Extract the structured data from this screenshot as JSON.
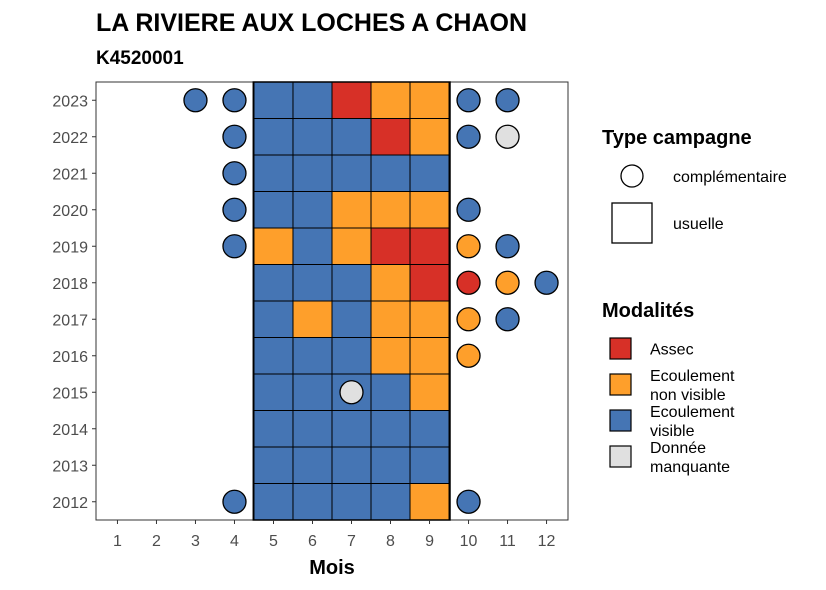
{
  "chart_data": {
    "type": "heatmap",
    "title": "LA RIVIERE AUX LOCHES A CHAON",
    "subtitle": "K4520001",
    "xlabel": "Mois",
    "ylabel": "",
    "x_ticks": [
      1,
      2,
      3,
      4,
      5,
      6,
      7,
      8,
      9,
      10,
      11,
      12
    ],
    "y_ticks": [
      2012,
      2013,
      2014,
      2015,
      2016,
      2017,
      2018,
      2019,
      2020,
      2021,
      2022,
      2023
    ],
    "usual_months": [
      5,
      6,
      7,
      8,
      9
    ],
    "colors": {
      "Assec": "#d73027",
      "Ecoulement non visible": "#fe9f2b",
      "Ecoulement visible": "#4575b4",
      "Donnee manquante": "#e0e0e0"
    },
    "legend_type": {
      "title": "Type campagne",
      "items": [
        {
          "key": "complementaire",
          "label": "complémentaire"
        },
        {
          "key": "usuelle",
          "label": "usuelle"
        }
      ]
    },
    "legend_modalites": {
      "title": "Modalités",
      "items": [
        {
          "key": "Assec",
          "lines": [
            "Assec"
          ]
        },
        {
          "key": "Ecoulement non visible",
          "lines": [
            "Ecoulement",
            "non visible"
          ]
        },
        {
          "key": "Ecoulement visible",
          "lines": [
            "Ecoulement",
            "visible"
          ]
        },
        {
          "key": "Donnee manquante",
          "lines": [
            "Donnée",
            "manquante"
          ]
        }
      ]
    },
    "usuelle": [
      {
        "year": 2023,
        "values": [
          "Ecoulement visible",
          "Ecoulement visible",
          "Assec",
          "Ecoulement non visible",
          "Ecoulement non visible"
        ]
      },
      {
        "year": 2022,
        "values": [
          "Ecoulement visible",
          "Ecoulement visible",
          "Ecoulement visible",
          "Assec",
          "Ecoulement non visible"
        ]
      },
      {
        "year": 2021,
        "values": [
          "Ecoulement visible",
          "Ecoulement visible",
          "Ecoulement visible",
          "Ecoulement visible",
          "Ecoulement visible"
        ]
      },
      {
        "year": 2020,
        "values": [
          "Ecoulement visible",
          "Ecoulement visible",
          "Ecoulement non visible",
          "Ecoulement non visible",
          "Ecoulement non visible"
        ]
      },
      {
        "year": 2019,
        "values": [
          "Ecoulement non visible",
          "Ecoulement visible",
          "Ecoulement non visible",
          "Assec",
          "Assec"
        ]
      },
      {
        "year": 2018,
        "values": [
          "Ecoulement visible",
          "Ecoulement visible",
          "Ecoulement visible",
          "Ecoulement non visible",
          "Assec"
        ]
      },
      {
        "year": 2017,
        "values": [
          "Ecoulement visible",
          "Ecoulement non visible",
          "Ecoulement visible",
          "Ecoulement non visible",
          "Ecoulement non visible"
        ]
      },
      {
        "year": 2016,
        "values": [
          "Ecoulement visible",
          "Ecoulement visible",
          "Ecoulement visible",
          "Ecoulement non visible",
          "Ecoulement non visible"
        ]
      },
      {
        "year": 2015,
        "values": [
          "Ecoulement visible",
          "Ecoulement visible",
          "Ecoulement visible",
          "Ecoulement visible",
          "Ecoulement non visible"
        ]
      },
      {
        "year": 2014,
        "values": [
          "Ecoulement visible",
          "Ecoulement visible",
          "Ecoulement visible",
          "Ecoulement visible",
          "Ecoulement visible"
        ]
      },
      {
        "year": 2013,
        "values": [
          "Ecoulement visible",
          "Ecoulement visible",
          "Ecoulement visible",
          "Ecoulement visible",
          "Ecoulement visible"
        ]
      },
      {
        "year": 2012,
        "values": [
          "Ecoulement visible",
          "Ecoulement visible",
          "Ecoulement visible",
          "Ecoulement visible",
          "Ecoulement non visible"
        ]
      }
    ],
    "complementaire": [
      {
        "year": 2023,
        "month": 3,
        "value": "Ecoulement visible"
      },
      {
        "year": 2023,
        "month": 4,
        "value": "Ecoulement visible"
      },
      {
        "year": 2023,
        "month": 10,
        "value": "Ecoulement visible"
      },
      {
        "year": 2023,
        "month": 11,
        "value": "Ecoulement visible"
      },
      {
        "year": 2022,
        "month": 4,
        "value": "Ecoulement visible"
      },
      {
        "year": 2022,
        "month": 10,
        "value": "Ecoulement visible"
      },
      {
        "year": 2022,
        "month": 11,
        "value": "Donnee manquante"
      },
      {
        "year": 2021,
        "month": 4,
        "value": "Ecoulement visible"
      },
      {
        "year": 2020,
        "month": 4,
        "value": "Ecoulement visible"
      },
      {
        "year": 2020,
        "month": 10,
        "value": "Ecoulement visible"
      },
      {
        "year": 2019,
        "month": 4,
        "value": "Ecoulement visible"
      },
      {
        "year": 2019,
        "month": 10,
        "value": "Ecoulement non visible"
      },
      {
        "year": 2019,
        "month": 11,
        "value": "Ecoulement visible"
      },
      {
        "year": 2018,
        "month": 10,
        "value": "Assec"
      },
      {
        "year": 2018,
        "month": 11,
        "value": "Ecoulement non visible"
      },
      {
        "year": 2018,
        "month": 12,
        "value": "Ecoulement visible"
      },
      {
        "year": 2017,
        "month": 10,
        "value": "Ecoulement non visible"
      },
      {
        "year": 2017,
        "month": 11,
        "value": "Ecoulement visible"
      },
      {
        "year": 2016,
        "month": 10,
        "value": "Ecoulement non visible"
      },
      {
        "year": 2015,
        "month": 7,
        "value": "Donnee manquante"
      },
      {
        "year": 2012,
        "month": 4,
        "value": "Ecoulement visible"
      },
      {
        "year": 2012,
        "month": 10,
        "value": "Ecoulement visible"
      }
    ]
  }
}
